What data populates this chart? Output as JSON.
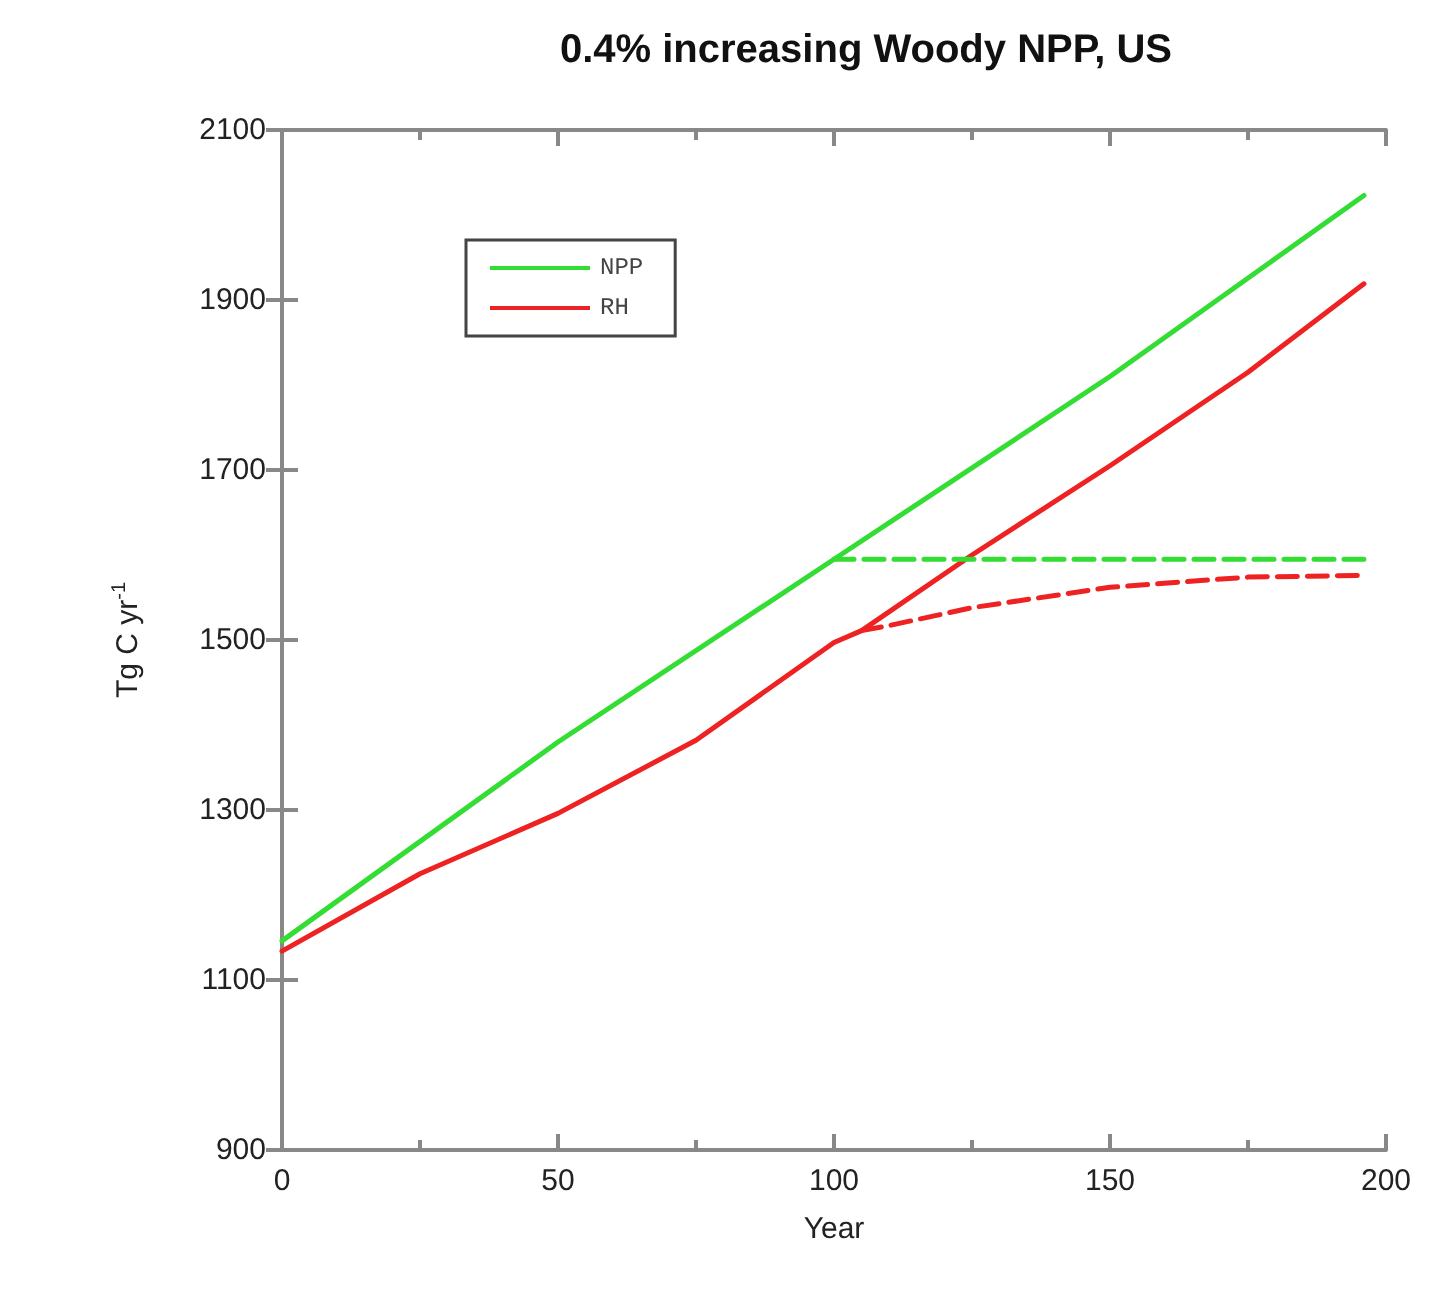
{
  "chart_data": {
    "type": "line",
    "title": "0.4% increasing Woody NPP, US",
    "xlabel": "Year",
    "ylabel": "Tg C yr$^{-1}$",
    "xlim": [
      0,
      200
    ],
    "xticks": [
      0,
      50,
      100,
      150,
      200
    ],
    "ylim": [
      900,
      2100
    ],
    "yticks": [
      900,
      1100,
      1300,
      1500,
      1700,
      1900,
      2100
    ],
    "grid": false,
    "legend": "top left",
    "marker": "none",
    "series": [
      {
        "name": "NPP",
        "color": "#33dd33",
        "line_style": "solid",
        "x": [
          0,
          50,
          100,
          150,
          196
        ],
        "values": [
          1146,
          1380,
          1595,
          1810,
          2023
        ]
      },
      {
        "name": "RH",
        "color": "#ee2222",
        "line_style": "solid",
        "x": [
          0,
          25,
          50,
          75,
          100,
          105,
          125,
          150,
          175,
          196
        ],
        "values": [
          1134,
          1225,
          1296,
          1382,
          1497,
          1511,
          1600,
          1705,
          1815,
          1919
        ]
      },
      {
        "color": "#33dd33",
        "line_style": "dashed",
        "x": [
          100,
          196
        ],
        "values": [
          1595,
          1595
        ]
      },
      {
        "color": "#ee2222",
        "line_style": "dashed",
        "x": [
          105,
          110,
          125,
          150,
          175,
          196
        ],
        "values": [
          1511,
          1517,
          1538,
          1562,
          1574,
          1576
        ]
      }
    ]
  }
}
